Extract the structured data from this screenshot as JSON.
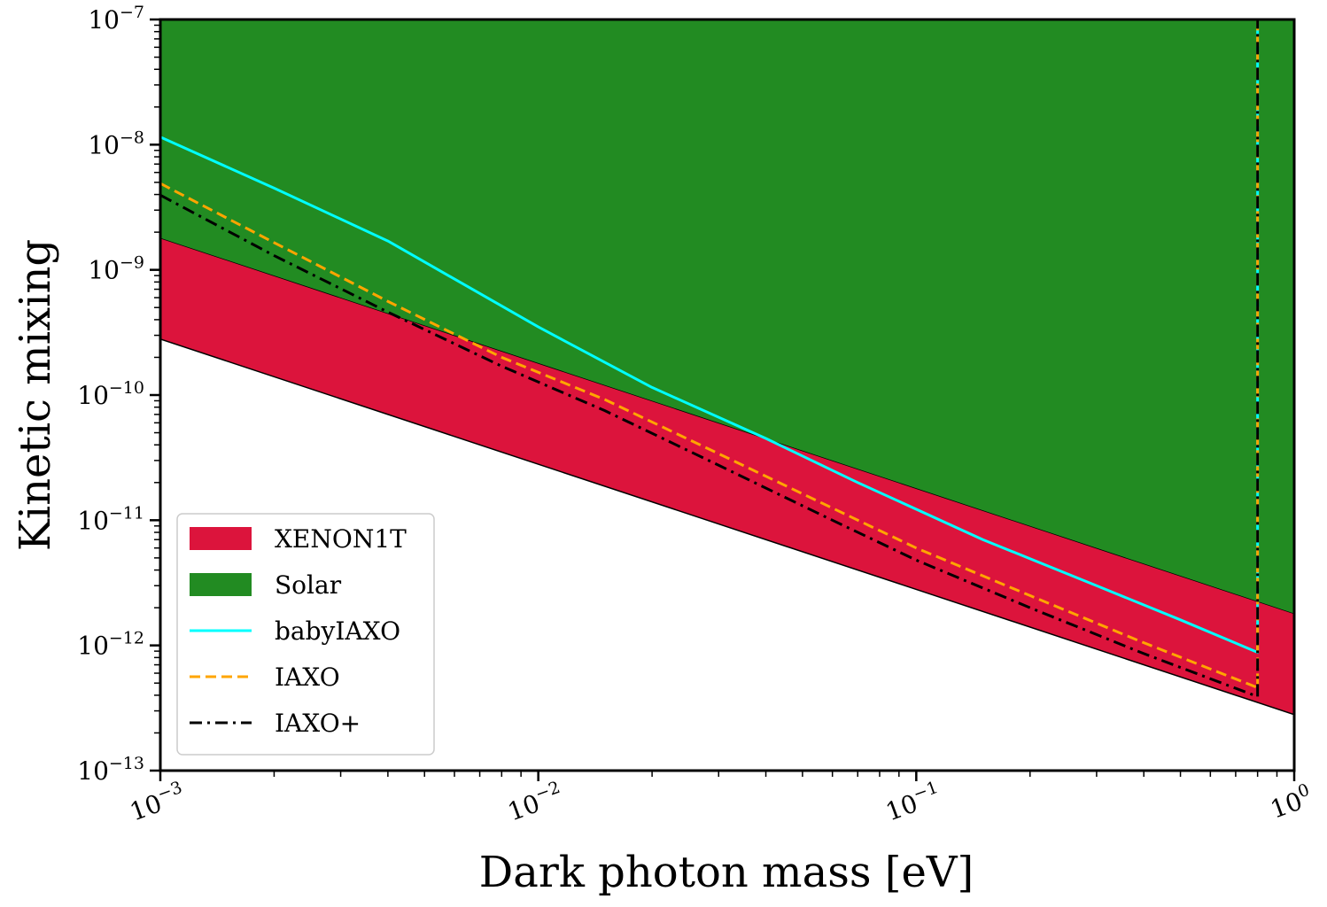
{
  "chart_data": {
    "type": "area",
    "xlabel": "Dark photon mass [eV]",
    "ylabel": "Kinetic mixing",
    "x_scale": "log",
    "y_scale": "log",
    "xlim": [
      0.001,
      1
    ],
    "ylim": [
      1e-13,
      1e-07
    ],
    "x_ticks": [
      {
        "value": 0.001,
        "base": "10",
        "exp": "−3"
      },
      {
        "value": 0.01,
        "base": "10",
        "exp": "−2"
      },
      {
        "value": 0.1,
        "base": "10",
        "exp": "−1"
      },
      {
        "value": 1,
        "base": "10",
        "exp": "0"
      }
    ],
    "y_ticks": [
      {
        "value": 1e-13,
        "base": "10",
        "exp": "−13"
      },
      {
        "value": 1e-12,
        "base": "10",
        "exp": "−12"
      },
      {
        "value": 1e-11,
        "base": "10",
        "exp": "−11"
      },
      {
        "value": 1e-10,
        "base": "10",
        "exp": "−10"
      },
      {
        "value": 1e-09,
        "base": "10",
        "exp": "−9"
      },
      {
        "value": 1e-08,
        "base": "10",
        "exp": "−8"
      },
      {
        "value": 1e-07,
        "base": "10",
        "exp": "−7"
      }
    ],
    "grid": false,
    "legend_position": "lower-left",
    "series": [
      {
        "name": "XENON1T",
        "kind": "band",
        "color": "#dc143c",
        "x": [
          0.001,
          1
        ],
        "y_lower": [
          2.8e-10,
          2.8e-13
        ],
        "y_upper": [
          1.8e-09,
          1.8e-12
        ]
      },
      {
        "name": "Solar",
        "kind": "fill-above",
        "color": "#228b22",
        "x": [
          0.001,
          1
        ],
        "y_lower": [
          1.8e-09,
          1.8e-12
        ]
      },
      {
        "name": "babyIAXO",
        "kind": "line",
        "style": "solid",
        "color": "#00ffff",
        "x": [
          0.001,
          0.002,
          0.004,
          0.01,
          0.02,
          0.04,
          0.07,
          0.15,
          0.3,
          0.5,
          0.8,
          0.8
        ],
        "y": [
          1.15e-08,
          4.5e-09,
          1.7e-09,
          3.5e-10,
          1.15e-10,
          4.5e-11,
          2e-11,
          7e-12,
          3e-12,
          1.6e-12,
          8.8e-13,
          1e-07
        ]
      },
      {
        "name": "IAXO",
        "kind": "line",
        "style": "dashed",
        "color": "#ffa500",
        "x": [
          0.001,
          0.002,
          0.004,
          0.008,
          0.015,
          0.03,
          0.06,
          0.1,
          0.2,
          0.4,
          0.8,
          0.8
        ],
        "y": [
          4.9e-09,
          1.65e-09,
          5.6e-10,
          2e-10,
          9.2e-11,
          3.4e-11,
          1.25e-11,
          6e-12,
          2.5e-12,
          1.05e-12,
          4.6e-13,
          1e-07
        ]
      },
      {
        "name": "IAXO+",
        "kind": "line",
        "style": "dashdot",
        "color": "#000000",
        "x": [
          0.001,
          0.002,
          0.004,
          0.008,
          0.015,
          0.03,
          0.06,
          0.1,
          0.2,
          0.4,
          0.8,
          0.8
        ],
        "y": [
          3.95e-09,
          1.3e-09,
          4.6e-10,
          1.7e-10,
          7.5e-11,
          2.75e-11,
          1e-11,
          4.8e-12,
          2e-12,
          8.6e-13,
          3.9e-13,
          1e-07
        ]
      }
    ]
  }
}
